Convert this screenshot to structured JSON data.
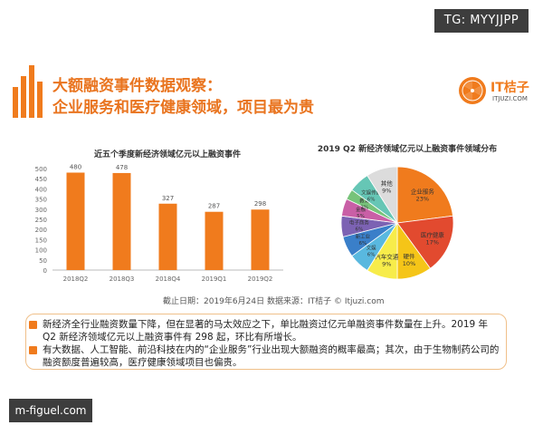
{
  "watermark_top": "TG: MYYJJPP",
  "watermark_bottom": "m-figuel.com",
  "title": {
    "line1": "大额融资事件数据观察：",
    "line2": "企业服务和医疗健康领域，项目最为贵"
  },
  "logo": {
    "text": "IT桔子",
    "sub": "ITJUZI.COM",
    "icon": "orange-slice-icon"
  },
  "colors": {
    "accent": "#f07b1d",
    "title": "#e9741f",
    "bar": "#f07b1d"
  },
  "chart_data": [
    {
      "type": "bar",
      "title": "近五个季度新经济领域亿元以上融资事件",
      "categories": [
        "2018Q2",
        "2018Q3",
        "2018Q4",
        "2019Q1",
        "2019Q2"
      ],
      "values": [
        480,
        478,
        327,
        287,
        298
      ],
      "ylim": [
        0,
        500
      ],
      "yticks": [
        0,
        50,
        100,
        150,
        200,
        250,
        300,
        350,
        400,
        450,
        500
      ],
      "grid": false,
      "data_labels": true
    },
    {
      "type": "pie",
      "title": "2019 Q2 新经济领域亿元以上融资事件领域分布",
      "slices": [
        {
          "label": "企业服务",
          "value": 23,
          "color": "#f07b1d"
        },
        {
          "label": "医疗健康",
          "value": 17,
          "color": "#e24a2f"
        },
        {
          "label": "硬件",
          "value": 10,
          "color": "#f5c518"
        },
        {
          "label": "汽车交通",
          "value": 9,
          "color": "#f7ec4a"
        },
        {
          "label": "文娱",
          "value": 6,
          "color": "#59b8df"
        },
        {
          "label": "新工业",
          "value": 6,
          "color": "#3a7fc9"
        },
        {
          "label": "电子商务",
          "value": 6,
          "color": "#7c62b3"
        },
        {
          "label": "金融",
          "value": 5,
          "color": "#c95fa6"
        },
        {
          "label": "教育",
          "value": 3,
          "color": "#77c37a"
        },
        {
          "label": "文娱传媒",
          "value": 6,
          "color": "#66c6b5"
        },
        {
          "label": "其他",
          "value": 9,
          "color": "#dcdcdc"
        }
      ]
    }
  ],
  "source": "截止日期：2019年6月24日     数据来源：IT桔子 © Itjuzi.com",
  "notes": [
    "新经济全行业融资数量下降，但在显著的马太效应之下，单比融资过亿元单融资事件数量在上升。2019 年 Q2 新经济领域亿元以上融资事件有 298 起，环比有所增长。",
    "有大数据、人工智能、前沿科技在内的“企业服务”行业出现大额融资的概率最高；其次，由于生物制药公司的融资额度普遍较高，医疗健康领域项目也偏贵。"
  ]
}
